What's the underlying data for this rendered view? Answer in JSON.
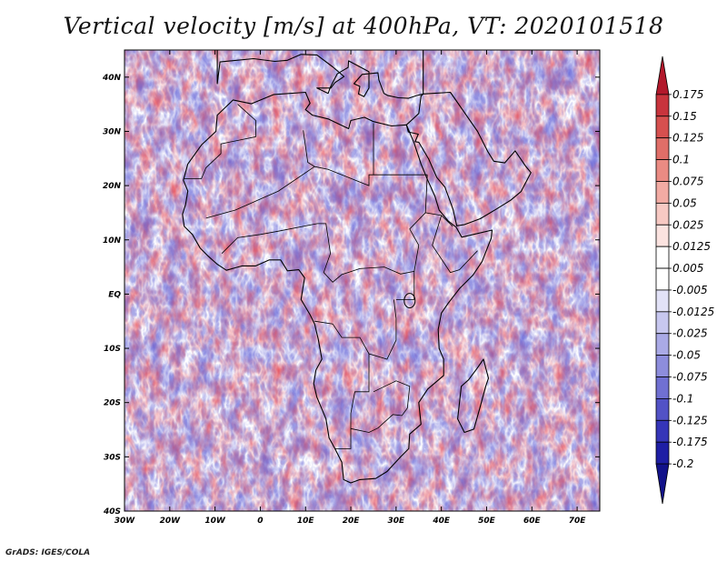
{
  "title": "Vertical velocity [m/s] at 400hPa, VT: 2020101518",
  "credit": "GrADS: IGES/COLA",
  "map": {
    "lat_labels": [
      "40N",
      "30N",
      "20N",
      "10N",
      "EQ",
      "10S",
      "20S",
      "30S",
      "40S"
    ],
    "lat_values": [
      40,
      30,
      20,
      10,
      0,
      -10,
      -20,
      -30,
      -40
    ],
    "lon_labels": [
      "30W",
      "20W",
      "10W",
      "0",
      "10E",
      "20E",
      "30E",
      "40E",
      "50E",
      "60E",
      "70E"
    ],
    "lon_values": [
      -30,
      -20,
      -10,
      0,
      10,
      20,
      30,
      40,
      50,
      60,
      70
    ],
    "lon_range": [
      -30,
      75
    ],
    "lat_range": [
      -40,
      45
    ],
    "coast_color": "#000000"
  },
  "colorbar": {
    "labels": [
      "0.175",
      "0.15",
      "0.125",
      "0.1",
      "0.075",
      "0.05",
      "0.025",
      "0.0125",
      "0.005",
      "-0.005",
      "-0.0125",
      "-0.025",
      "-0.05",
      "-0.075",
      "-0.1",
      "-0.125",
      "-0.175",
      "-0.2"
    ],
    "colors": [
      "#b2182b",
      "#c8343d",
      "#d6504f",
      "#e06e68",
      "#ea8b83",
      "#f2aba3",
      "#f7c9c3",
      "#fbe3e0",
      "#ffffff",
      "#ffffff",
      "#e2e2f7",
      "#c7c7ef",
      "#aaaae6",
      "#8d8ddc",
      "#7070d2",
      "#5252c6",
      "#3535b8",
      "#1e1ea4",
      "#12128a"
    ]
  }
}
